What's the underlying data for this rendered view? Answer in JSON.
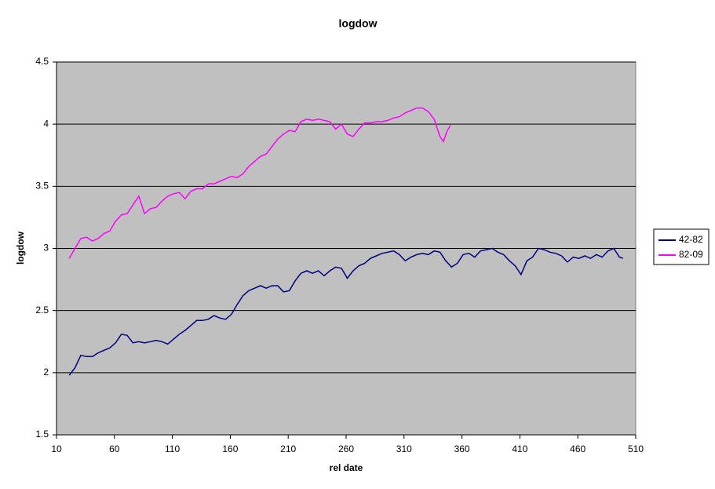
{
  "chart_data": {
    "type": "line",
    "title": "logdow",
    "x_label": "rel date",
    "y_label": "logdow",
    "xlim": [
      10,
      510
    ],
    "xticks": [
      10,
      60,
      110,
      160,
      210,
      260,
      310,
      360,
      410,
      460,
      510
    ],
    "ylim": [
      1.5,
      4.5
    ],
    "yticks": [
      1.5,
      2,
      2.5,
      3,
      3.5,
      4,
      4.5
    ],
    "grid": true,
    "legend": "right",
    "background": "#c0c0c0",
    "series": [
      {
        "name": "42-82",
        "color": "#000080",
        "x": [
          21,
          26,
          31,
          36,
          41,
          46,
          51,
          56,
          61,
          66,
          71,
          76,
          81,
          86,
          91,
          96,
          101,
          106,
          111,
          116,
          121,
          126,
          131,
          136,
          141,
          146,
          151,
          156,
          161,
          166,
          171,
          176,
          181,
          186,
          191,
          196,
          201,
          206,
          211,
          216,
          221,
          226,
          231,
          236,
          241,
          246,
          251,
          256,
          261,
          266,
          271,
          276,
          281,
          286,
          291,
          296,
          301,
          306,
          311,
          316,
          321,
          326,
          331,
          336,
          341,
          346,
          351,
          356,
          361,
          366,
          371,
          376,
          381,
          386,
          391,
          396,
          401,
          406,
          411,
          416,
          421,
          426,
          431,
          436,
          441,
          446,
          451,
          456,
          461,
          466,
          471,
          476,
          481,
          486,
          491,
          496,
          499
        ],
        "values": [
          1.98,
          2.04,
          2.14,
          2.13,
          2.13,
          2.16,
          2.18,
          2.2,
          2.24,
          2.31,
          2.3,
          2.24,
          2.25,
          2.24,
          2.25,
          2.26,
          2.25,
          2.23,
          2.27,
          2.31,
          2.34,
          2.38,
          2.42,
          2.42,
          2.43,
          2.46,
          2.44,
          2.43,
          2.47,
          2.55,
          2.62,
          2.66,
          2.68,
          2.7,
          2.68,
          2.7,
          2.7,
          2.65,
          2.66,
          2.74,
          2.8,
          2.82,
          2.8,
          2.82,
          2.78,
          2.82,
          2.85,
          2.84,
          2.76,
          2.82,
          2.86,
          2.88,
          2.92,
          2.94,
          2.96,
          2.97,
          2.98,
          2.95,
          2.9,
          2.93,
          2.95,
          2.96,
          2.95,
          2.98,
          2.97,
          2.9,
          2.85,
          2.88,
          2.95,
          2.96,
          2.93,
          2.98,
          2.99,
          3.0,
          2.97,
          2.95,
          2.9,
          2.86,
          2.79,
          2.9,
          2.93,
          3.0,
          2.99,
          2.97,
          2.96,
          2.94,
          2.89,
          2.93,
          2.92,
          2.94,
          2.92,
          2.95,
          2.93,
          2.98,
          3.0,
          2.93,
          2.92
        ]
      },
      {
        "name": "82-09",
        "color": "#ff00ff",
        "x": [
          21,
          26,
          31,
          36,
          41,
          46,
          51,
          56,
          61,
          66,
          71,
          76,
          81,
          86,
          91,
          96,
          101,
          106,
          111,
          116,
          121,
          126,
          131,
          136,
          141,
          146,
          151,
          156,
          161,
          166,
          171,
          176,
          181,
          186,
          191,
          196,
          201,
          206,
          211,
          216,
          221,
          226,
          231,
          236,
          241,
          246,
          251,
          256,
          261,
          266,
          271,
          276,
          281,
          286,
          291,
          296,
          301,
          306,
          311,
          316,
          321,
          326,
          331,
          336,
          341,
          344,
          347,
          350
        ],
        "values": [
          2.92,
          3.0,
          3.08,
          3.09,
          3.06,
          3.08,
          3.12,
          3.14,
          3.22,
          3.27,
          3.28,
          3.35,
          3.42,
          3.28,
          3.32,
          3.33,
          3.38,
          3.42,
          3.44,
          3.45,
          3.4,
          3.46,
          3.48,
          3.48,
          3.52,
          3.52,
          3.54,
          3.56,
          3.58,
          3.57,
          3.6,
          3.66,
          3.7,
          3.74,
          3.76,
          3.82,
          3.88,
          3.92,
          3.95,
          3.94,
          4.02,
          4.04,
          4.03,
          4.04,
          4.03,
          4.02,
          3.96,
          4.0,
          3.92,
          3.9,
          3.96,
          4.01,
          4.01,
          4.02,
          4.02,
          4.03,
          4.05,
          4.06,
          4.09,
          4.11,
          4.13,
          4.13,
          4.1,
          4.04,
          3.9,
          3.86,
          3.94,
          3.99
        ]
      }
    ]
  }
}
